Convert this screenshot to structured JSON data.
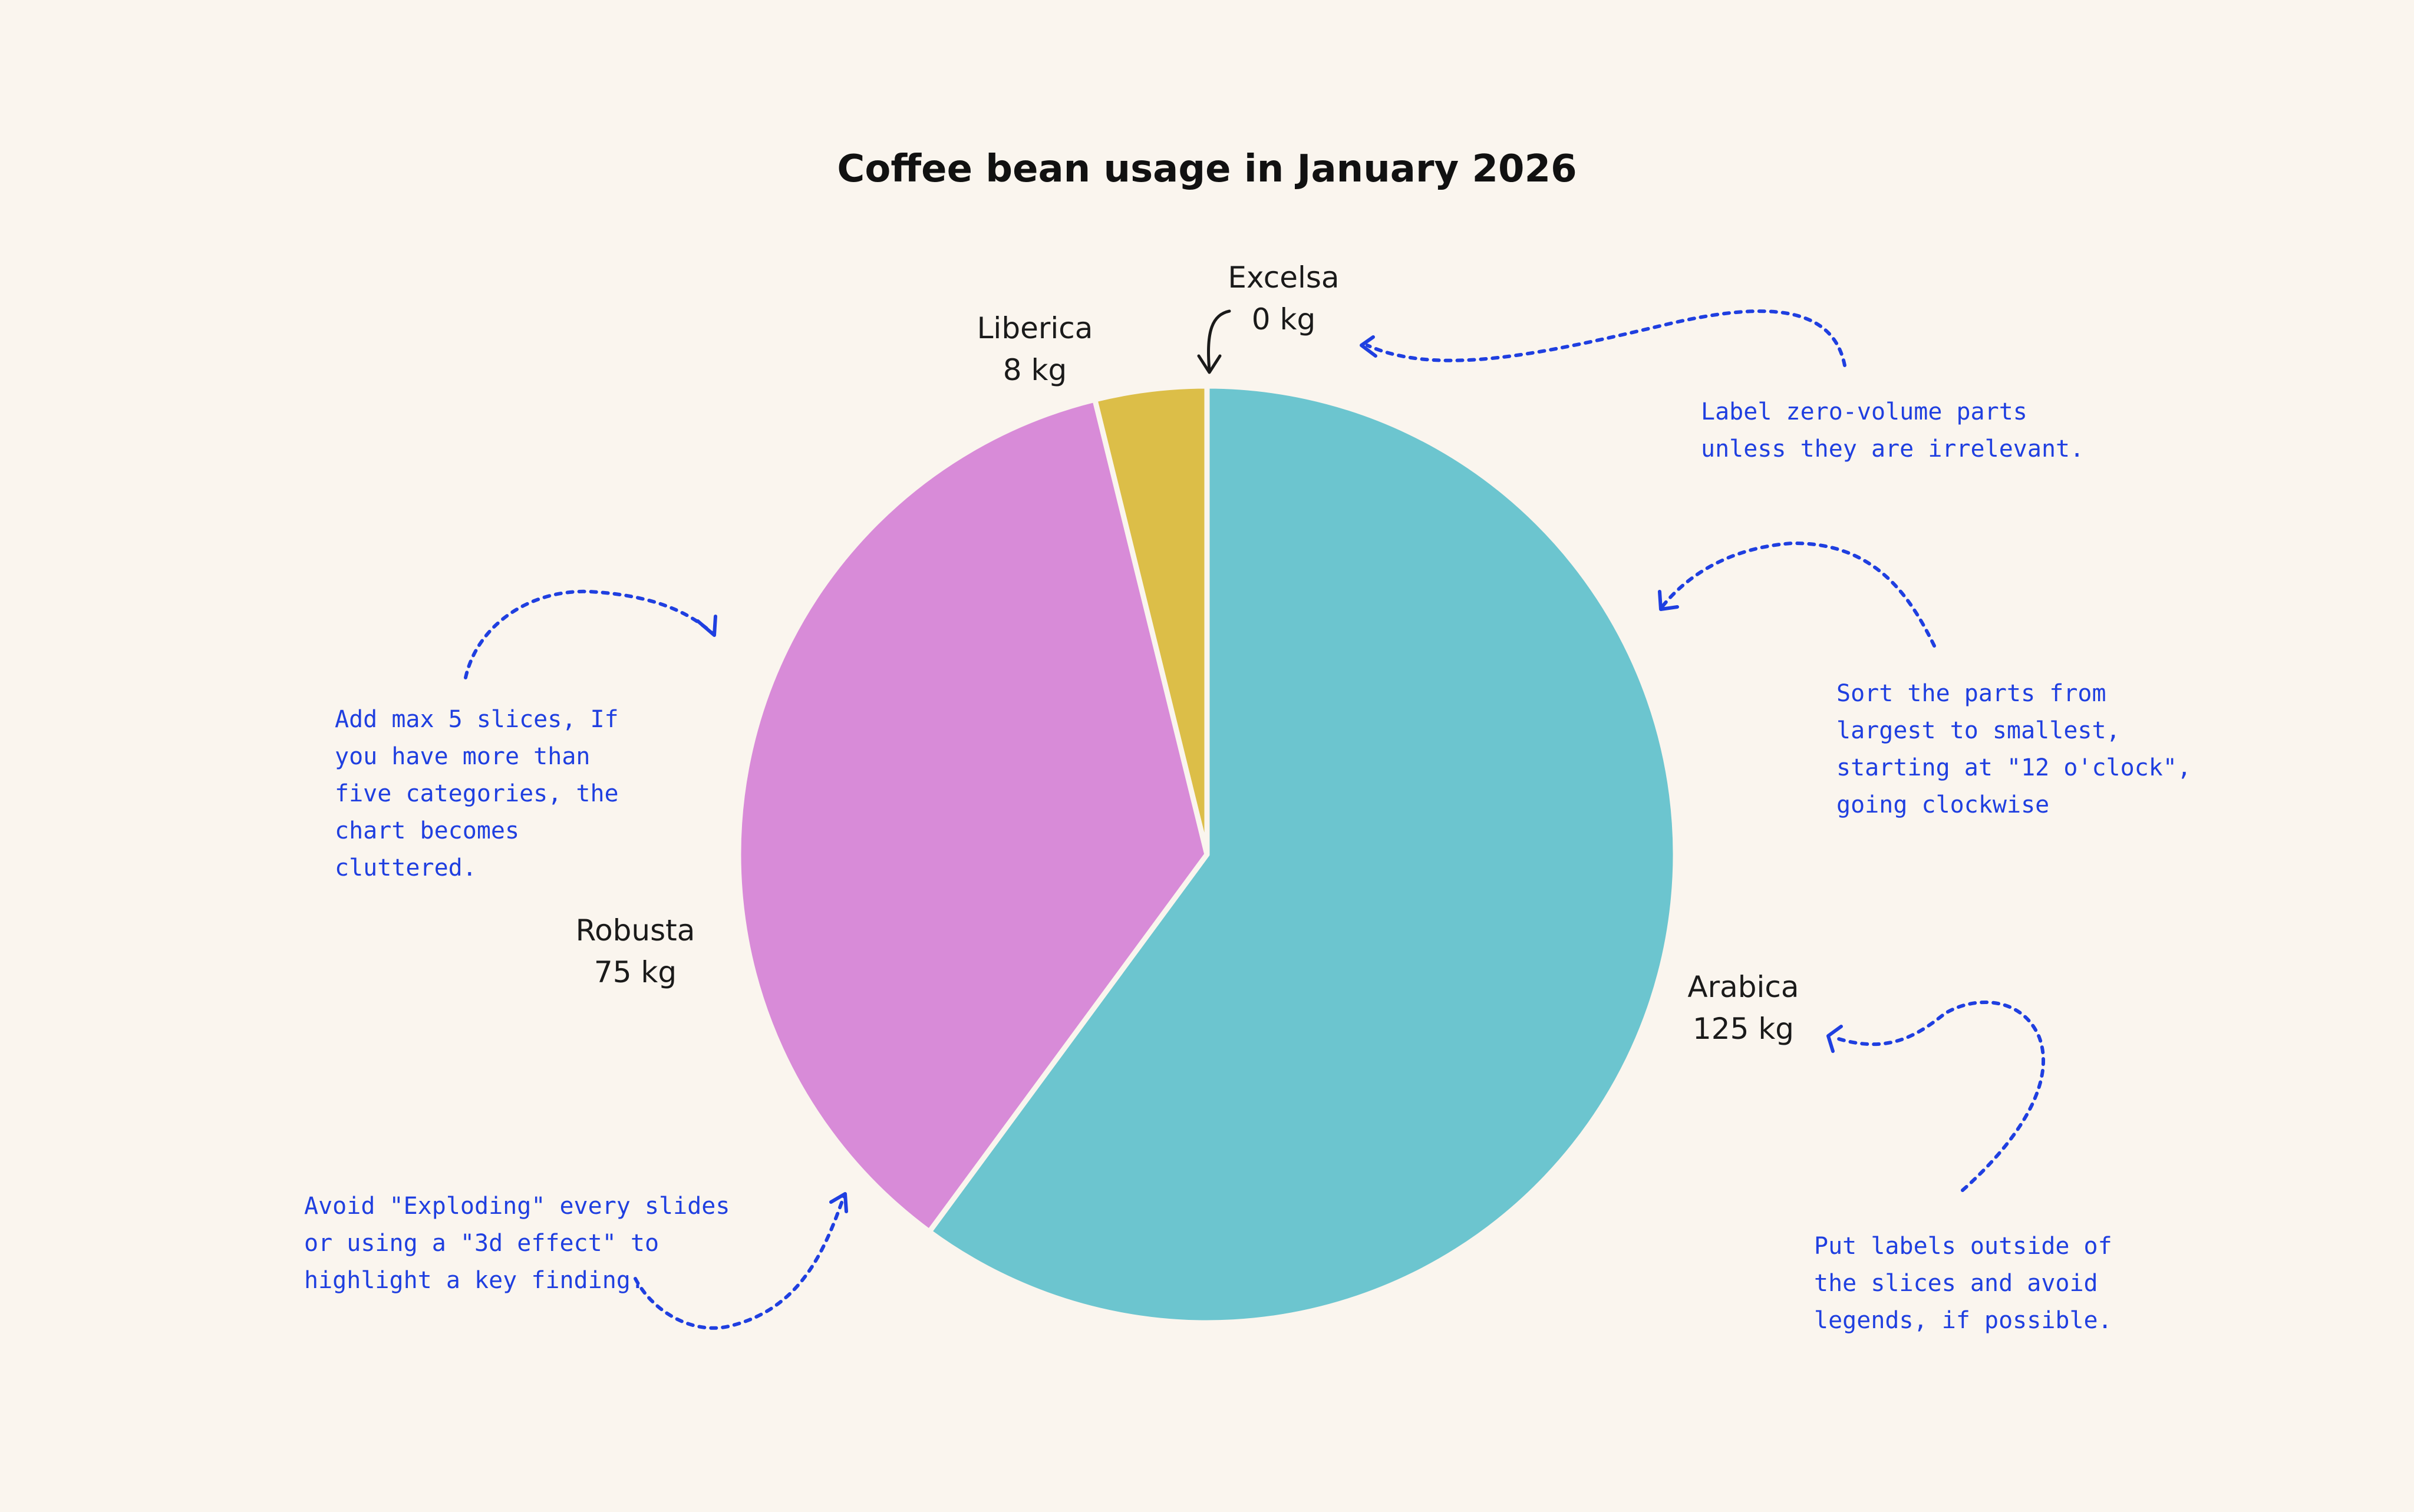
{
  "chart_data": {
    "type": "pie",
    "title": "Coffee bean usage in January 2026",
    "start_angle": "12 o'clock",
    "direction": "clockwise",
    "legend": "none",
    "categories": [
      "Arabica",
      "Robusta",
      "Liberica",
      "Excelsa"
    ],
    "values": [
      125,
      75,
      8,
      0
    ],
    "value_labels": [
      "125 kg",
      "75 kg",
      "8 kg",
      "0 kg"
    ],
    "colors": [
      "#6cc5cf",
      "#d88bd8",
      "#dcbe48",
      "#b0b0b0"
    ],
    "slice_border_color": "#faf5ee"
  },
  "annotations": [
    {
      "id": "zero-volume",
      "lines": [
        "Label zero-volume parts",
        "unless they are irrelevant."
      ]
    },
    {
      "id": "sort-parts",
      "lines": [
        "Sort the parts from",
        "largest to smallest,",
        "starting at \"12 o'clock\",",
        "going clockwise"
      ]
    },
    {
      "id": "max-slices",
      "lines": [
        "Add max 5 slices, If",
        "you have more than",
        "five categories, the",
        "chart becomes",
        "cluttered."
      ]
    },
    {
      "id": "avoid-exploding",
      "lines": [
        "Avoid \"Exploding\" every slides",
        "or using a \"3d effect\" to",
        "highlight a key finding."
      ]
    },
    {
      "id": "labels-outside",
      "lines": [
        "Put labels outside of",
        "the slices and avoid",
        "legends, if possible."
      ]
    }
  ],
  "annotation_color": "#1f3fe0",
  "background_color": "#faf5ee"
}
